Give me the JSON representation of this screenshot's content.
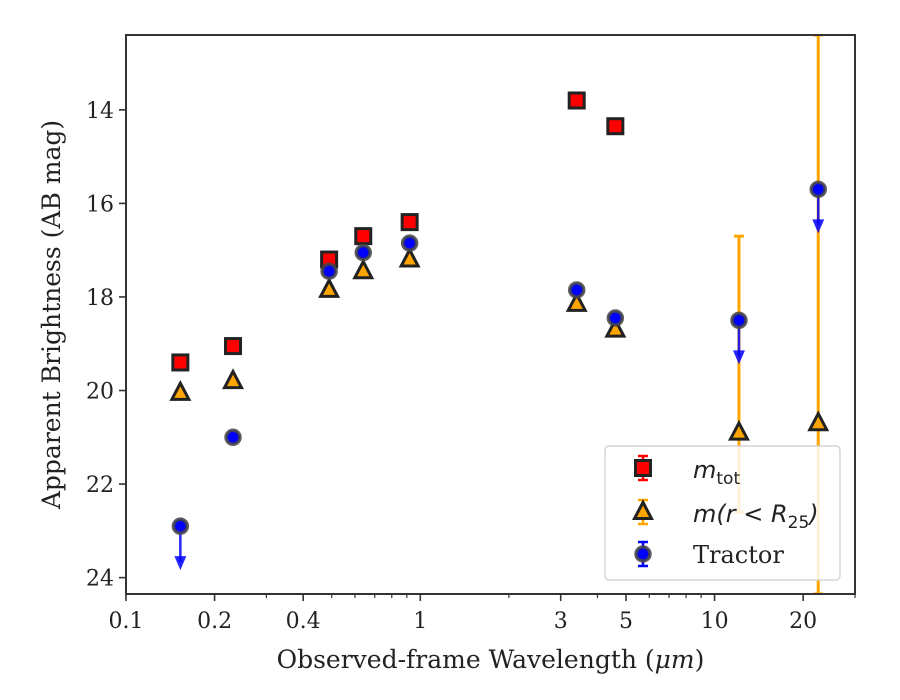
{
  "chart_data": {
    "type": "scatter",
    "xlabel_prefix": "Observed-frame Wavelength (",
    "xlabel_unit": "μm",
    "xlabel_suffix": ")",
    "ylabel": "Apparent Brightness (AB mag)",
    "xscale": "log",
    "xlim": [
      0.1,
      30
    ],
    "ylim": [
      24.35,
      12.4
    ],
    "y_inverted": true,
    "grid": false,
    "legend_position": "lower right",
    "x_ticks": [
      0.1,
      0.2,
      0.4,
      1,
      3,
      5,
      10,
      20
    ],
    "x_tick_labels": [
      "0.1",
      "0.2",
      "0.4",
      "1",
      "3",
      "5",
      "10",
      "20"
    ],
    "y_ticks": [
      14,
      16,
      18,
      20,
      22,
      24
    ],
    "y_tick_labels": [
      "14",
      "16",
      "18",
      "20",
      "22",
      "24"
    ],
    "series": [
      {
        "name": "m_tot",
        "legend_main": "m",
        "legend_sub": "tot",
        "marker": "square",
        "color": "#ff0000",
        "edge": "#222222",
        "points": [
          {
            "x": 0.153,
            "y": 19.4
          },
          {
            "x": 0.231,
            "y": 19.05
          },
          {
            "x": 0.49,
            "y": 17.2
          },
          {
            "x": 0.64,
            "y": 16.7
          },
          {
            "x": 0.92,
            "y": 16.4
          },
          {
            "x": 3.4,
            "y": 13.8
          },
          {
            "x": 4.6,
            "y": 14.35
          }
        ]
      },
      {
        "name": "m(r<R25)",
        "legend_main": "m(r < R",
        "legend_sub": "25",
        "legend_close": ")",
        "marker": "triangle",
        "color": "#ffa500",
        "edge": "#222222",
        "points": [
          {
            "x": 0.153,
            "y": 20.05,
            "err": 0.12
          },
          {
            "x": 0.231,
            "y": 19.8
          },
          {
            "x": 0.49,
            "y": 17.85
          },
          {
            "x": 0.64,
            "y": 17.45
          },
          {
            "x": 0.92,
            "y": 17.2
          },
          {
            "x": 3.4,
            "y": 18.15
          },
          {
            "x": 4.6,
            "y": 18.7
          },
          {
            "x": 12.1,
            "y": 20.9,
            "yerr_top": 16.7,
            "yerr_bottom": 22.6
          },
          {
            "x": 22.5,
            "y": 20.7,
            "yerr_top": 12.4,
            "yerr_bottom": 24.35
          }
        ]
      },
      {
        "name": "Tractor",
        "legend_main": "Tractor",
        "marker": "circle",
        "color": "#0000ff",
        "edge": "#444444",
        "points": [
          {
            "x": 0.153,
            "y": 22.9,
            "upper_limit": true
          },
          {
            "x": 0.231,
            "y": 21.0
          },
          {
            "x": 0.49,
            "y": 17.45
          },
          {
            "x": 0.64,
            "y": 17.05
          },
          {
            "x": 0.92,
            "y": 16.85
          },
          {
            "x": 3.4,
            "y": 17.85
          },
          {
            "x": 4.6,
            "y": 18.45
          },
          {
            "x": 12.1,
            "y": 18.5,
            "upper_limit": true
          },
          {
            "x": 22.5,
            "y": 15.7,
            "upper_limit": true
          }
        ]
      }
    ]
  }
}
